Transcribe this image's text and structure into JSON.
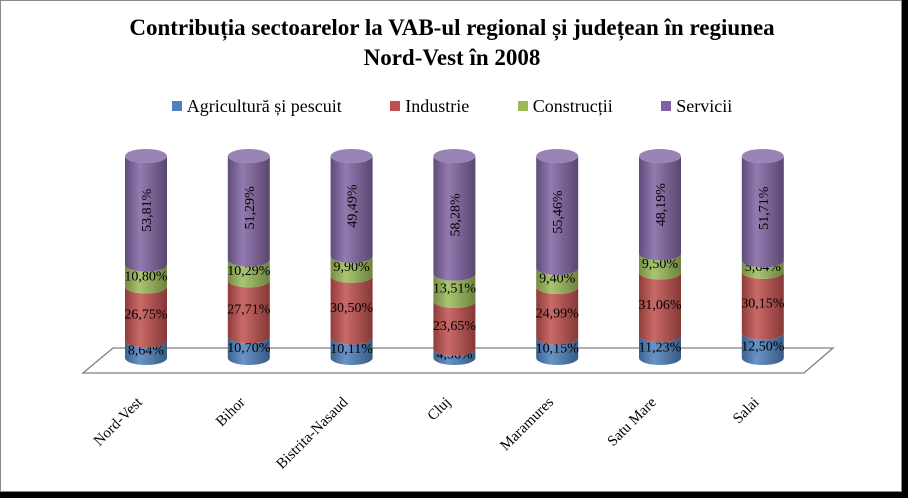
{
  "chart_data": {
    "type": "bar",
    "stacked": true,
    "style": "3d-cylinder",
    "title_line1": "Contribuția sectoarelor la VAB-ul regional și județean în regiunea",
    "title_line2": "Nord-Vest în 2008",
    "categories": [
      "Nord-Vest",
      "Bihor",
      "Bistrita-Nasaud",
      "Cluj",
      "Maramures",
      "Satu Mare",
      "Salai"
    ],
    "series": [
      {
        "name": "Agricultură și pescuit",
        "color": "#4F81BD",
        "values": [
          8.64,
          10.7,
          10.11,
          4.56,
          10.15,
          11.23,
          12.5
        ],
        "labels": [
          "8,64%",
          "10,70%",
          "10,11%",
          "4,56%",
          "10,15%",
          "11,23%",
          "12,50%"
        ]
      },
      {
        "name": "Industrie",
        "color": "#C0504D",
        "values": [
          26.75,
          27.71,
          30.5,
          23.65,
          24.99,
          31.06,
          30.15
        ],
        "labels": [
          "26,75%",
          "27,71%",
          "30,50%",
          "23,65%",
          "24,99%",
          "31,06%",
          "30,15%"
        ]
      },
      {
        "name": "Construcții",
        "color": "#9BBB59",
        "values": [
          10.8,
          10.29,
          9.9,
          13.51,
          9.4,
          9.5,
          5.64
        ],
        "labels": [
          "10,80%",
          "10,29%",
          "9,90%",
          "13,51%",
          "9,40%",
          "9,50%",
          "5,64%"
        ]
      },
      {
        "name": "Servicii",
        "color": "#8064A2",
        "values": [
          53.81,
          51.29,
          49.49,
          58.28,
          55.46,
          48.19,
          51.71
        ],
        "labels": [
          "53,81%",
          "51,29%",
          "49,49%",
          "58,28%",
          "55,46%",
          "48,19%",
          "51,71%"
        ]
      }
    ],
    "ylim": [
      0,
      100
    ],
    "legend_position": "top"
  }
}
